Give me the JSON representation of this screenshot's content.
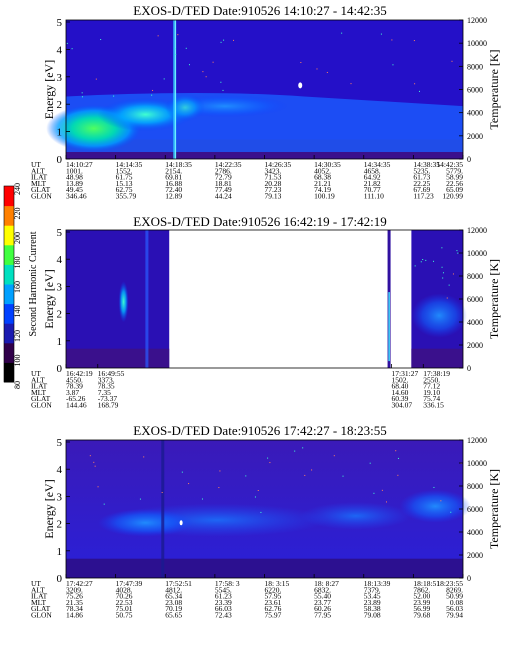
{
  "colorbar": {
    "label": "Second Harmonic Current",
    "ticks": [
      "80",
      "100",
      "120",
      "140",
      "160",
      "180",
      "200",
      "220",
      "240"
    ],
    "colors": [
      "#000000",
      "#30004a",
      "#1a1ab0",
      "#0040ff",
      "#00a0ff",
      "#00e0c0",
      "#40ff40",
      "#ffff00",
      "#ff8000",
      "#ff0000"
    ]
  },
  "panels": [
    {
      "title": "EXOS-D/TED",
      "date": "Date:910526  14:10:27 - 14:42:35",
      "ylabel": "Energy [eV]",
      "y2label": "Temperature [K]",
      "yticks": [
        "0",
        "1",
        "2",
        "3",
        "4",
        "5"
      ],
      "y2ticks": [
        "0",
        "2000",
        "4000",
        "6000",
        "8000",
        "10000",
        "12000"
      ],
      "row_labels": [
        "UT",
        "ALT",
        "ILAT",
        "MLT",
        "GLAT",
        "GLON"
      ],
      "columns": [
        [
          "14:10:27",
          "1001.",
          "48.98",
          "13.89",
          "49.45",
          "346.46"
        ],
        [
          "14:14:35",
          "1552.",
          "61.75",
          "15.13",
          "62.75",
          "355.79"
        ],
        [
          "14:18:35",
          "2154.",
          "69.81",
          "16.88",
          "72.40",
          "12.89"
        ],
        [
          "14:22:35",
          "2786.",
          "72.79",
          "18.81",
          "77.49",
          "44.24"
        ],
        [
          "14:26:35",
          "3423.",
          "71.53",
          "20.28",
          "77.23",
          "79.13"
        ],
        [
          "14:30:35",
          "4052.",
          "68.38",
          "21.21",
          "74.19",
          "100.19"
        ],
        [
          "14:34:35",
          "4658.",
          "64.92",
          "21.82",
          "70.77",
          "111.10"
        ],
        [
          "14:38:35",
          "5235.",
          "61.73",
          "22.25",
          "67.69",
          "117.23"
        ],
        [
          "14:42:35",
          "5779.",
          "58.99",
          "22.56",
          "65.09",
          "120.99"
        ]
      ]
    },
    {
      "title": "EXOS-D/TED",
      "date": "Date:910526  16:42:19 - 17:42:19",
      "ylabel": "Energy [eV]",
      "y2label": "Temperature [K]",
      "yticks": [
        "0",
        "1",
        "2",
        "3",
        "4",
        "5"
      ],
      "y2ticks": [
        "0",
        "2000",
        "4000",
        "6000",
        "8000",
        "10000",
        "12000"
      ],
      "row_labels": [
        "UT",
        "ALT",
        "ILAT",
        "MLT",
        "GLAT",
        "GLON"
      ],
      "columns": [
        [
          "16:42:19",
          "4550.",
          "78.39",
          "3.87",
          "-65.26",
          "144.46"
        ],
        [
          "16:49:55",
          "3373.",
          "78.35",
          "7.35",
          "-73.37",
          "168.79"
        ],
        [
          "17:31:27",
          "1502.",
          "68.40",
          "14.60",
          "60.39",
          "304.07"
        ],
        [
          "17:38:19",
          "2550.",
          "77.12",
          "19.10",
          "75.74",
          "336.15"
        ]
      ]
    },
    {
      "title": "EXOS-D/TED",
      "date": "Date:910526  17:42:27 - 18:23:55",
      "ylabel": "Energy [eV]",
      "y2label": "Temperature [K]",
      "yticks": [
        "0",
        "1",
        "2",
        "3",
        "4",
        "5"
      ],
      "y2ticks": [
        "0",
        "2000",
        "4000",
        "6000",
        "8000",
        "10000",
        "12000"
      ],
      "row_labels": [
        "UT",
        "ALT",
        "ILAT",
        "MLT",
        "GLAT",
        "GLON"
      ],
      "columns": [
        [
          "17:42:27",
          "3209.",
          "75.26",
          "21.35",
          "78.34",
          "14.86"
        ],
        [
          "17:47:39",
          "4028.",
          "70.26",
          "22.53",
          "75.01",
          "50.75"
        ],
        [
          "17:52:51",
          "4812.",
          "65.34",
          "23.08",
          "70.19",
          "65.65"
        ],
        [
          "17:58: 3",
          "5545.",
          "61.23",
          "23.39",
          "66.03",
          "72.43"
        ],
        [
          "18: 3:15",
          "6220.",
          "57.95",
          "23.61",
          "62.76",
          "75.97"
        ],
        [
          "18: 8:27",
          "6832.",
          "55.40",
          "23.77",
          "60.26",
          "77.95"
        ],
        [
          "18:13:39",
          "7379.",
          "53.45",
          "23.89",
          "58.38",
          "79.08"
        ],
        [
          "18:18:51",
          "7862.",
          "52.00",
          "23.99",
          "56.99",
          "79.68"
        ],
        [
          "18:23:55",
          "8269.",
          "50.99",
          "0.08",
          "56.03",
          "79.94"
        ]
      ]
    }
  ],
  "chart_data": [
    {
      "type": "heatmap",
      "title": "EXOS-D/TED",
      "subtitle": "Date:910526  14:10:27 - 14:42:35",
      "xlabel": "",
      "ylabel": "Energy [eV]",
      "y2label": "Temperature [K]",
      "ylim": [
        0,
        5
      ],
      "y2lim": [
        0,
        12000
      ],
      "colorbar_label": "Second Harmonic Current",
      "colorbar_range": [
        80,
        240
      ],
      "x_ticks": [
        "14:10:27",
        "14:14:35",
        "14:18:35",
        "14:22:35",
        "14:26:35",
        "14:30:35",
        "14:34:35",
        "14:38:35",
        "14:42:35"
      ]
    },
    {
      "type": "heatmap",
      "title": "EXOS-D/TED",
      "subtitle": "Date:910526  16:42:19 - 17:42:19",
      "xlabel": "",
      "ylabel": "Energy [eV]",
      "y2label": "Temperature [K]",
      "ylim": [
        0,
        5
      ],
      "y2lim": [
        0,
        12000
      ],
      "colorbar_label": "Second Harmonic Current",
      "colorbar_range": [
        80,
        240
      ],
      "x_ticks": [
        "16:42:19",
        "16:49:55",
        "17:31:27",
        "17:38:19"
      ]
    },
    {
      "type": "heatmap",
      "title": "EXOS-D/TED",
      "subtitle": "Date:910526  17:42:27 - 18:23:55",
      "xlabel": "",
      "ylabel": "Energy [eV]",
      "y2label": "Temperature [K]",
      "ylim": [
        0,
        5
      ],
      "y2lim": [
        0,
        12000
      ],
      "colorbar_label": "Second Harmonic Current",
      "colorbar_range": [
        80,
        240
      ],
      "x_ticks": [
        "17:42:27",
        "17:47:39",
        "17:52:51",
        "17:58: 3",
        "18: 3:15",
        "18: 8:27",
        "18:13:39",
        "18:18:51",
        "18:23:55"
      ]
    }
  ]
}
